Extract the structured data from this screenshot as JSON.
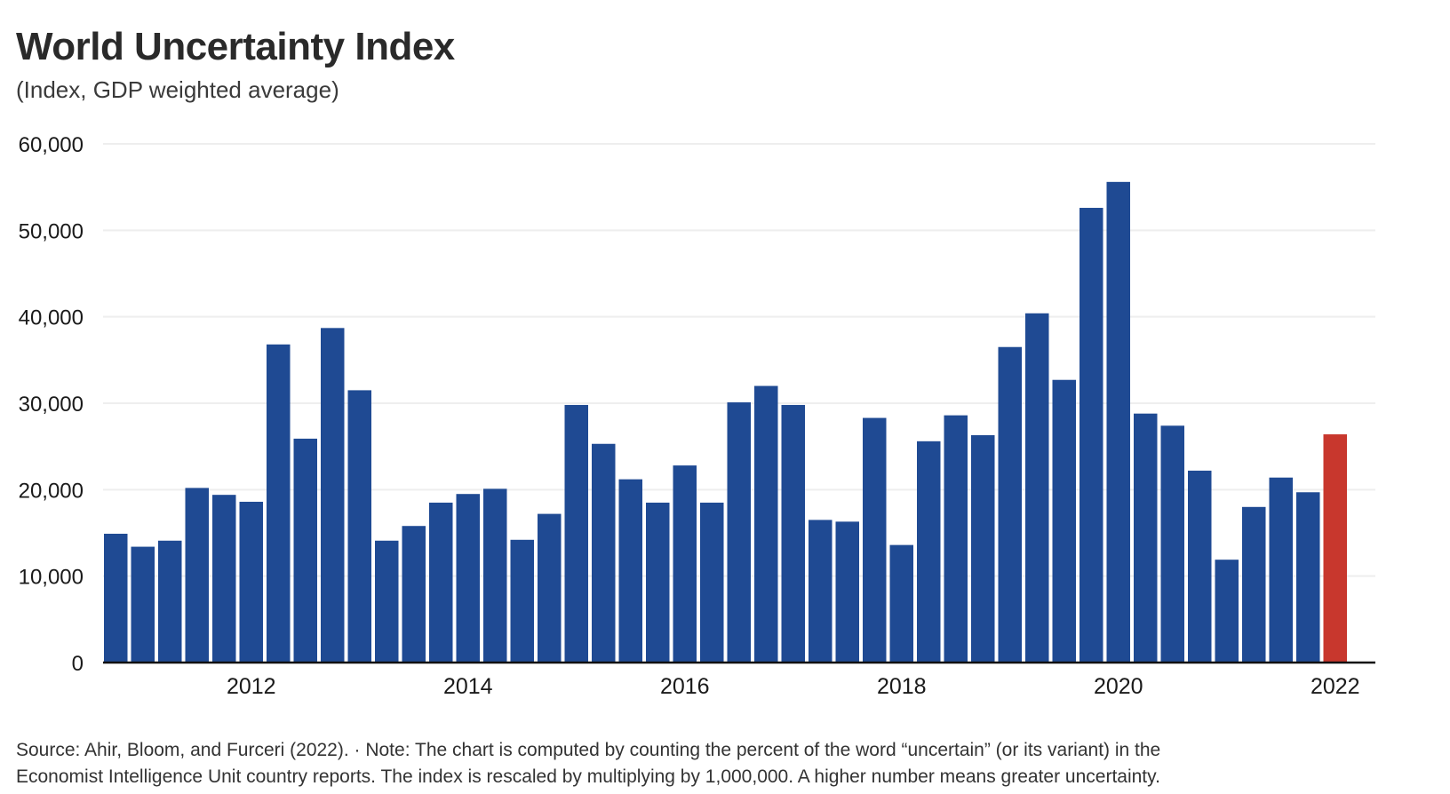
{
  "chart_data": {
    "type": "bar",
    "title": "World Uncertainty Index",
    "subtitle": "(Index, GDP weighted average)",
    "ylim": [
      0,
      60000
    ],
    "yticks": [
      0,
      10000,
      20000,
      30000,
      40000,
      50000,
      60000
    ],
    "ytick_labels": [
      "0",
      "10,000",
      "20,000",
      "30,000",
      "40,000",
      "50,000",
      "60,000"
    ],
    "xtick_labels": [
      {
        "label": "2012",
        "index": 5
      },
      {
        "label": "2014",
        "index": 13
      },
      {
        "label": "2016",
        "index": 21
      },
      {
        "label": "2018",
        "index": 29
      },
      {
        "label": "2020",
        "index": 37
      },
      {
        "label": "2022",
        "index": 45
      }
    ],
    "grid": true,
    "colors": {
      "bar": "#1f4a93",
      "highlight": "#c8372d",
      "grid": "#eeeeee",
      "axis": "#111111"
    },
    "highlight_index": 45,
    "values": [
      14900,
      13400,
      14100,
      20200,
      19400,
      18600,
      36800,
      25900,
      38700,
      31500,
      14100,
      15800,
      18500,
      19500,
      20100,
      14200,
      17200,
      29800,
      25300,
      21200,
      18500,
      22800,
      18500,
      30100,
      32000,
      29800,
      16500,
      16300,
      28300,
      13600,
      25600,
      28600,
      26300,
      36500,
      40400,
      32700,
      52600,
      55600,
      28800,
      27400,
      22200,
      11900,
      18000,
      21400,
      19700,
      26400
    ]
  },
  "footer": {
    "line1": "Source: Ahir, Bloom, and Furceri (2022). · Note: The chart is computed by counting the percent of the word “uncertain” (or its variant) in the",
    "line2": "Economist Intelligence Unit country reports. The index is rescaled by multiplying by 1,000,000. A higher number means greater uncertainty."
  }
}
